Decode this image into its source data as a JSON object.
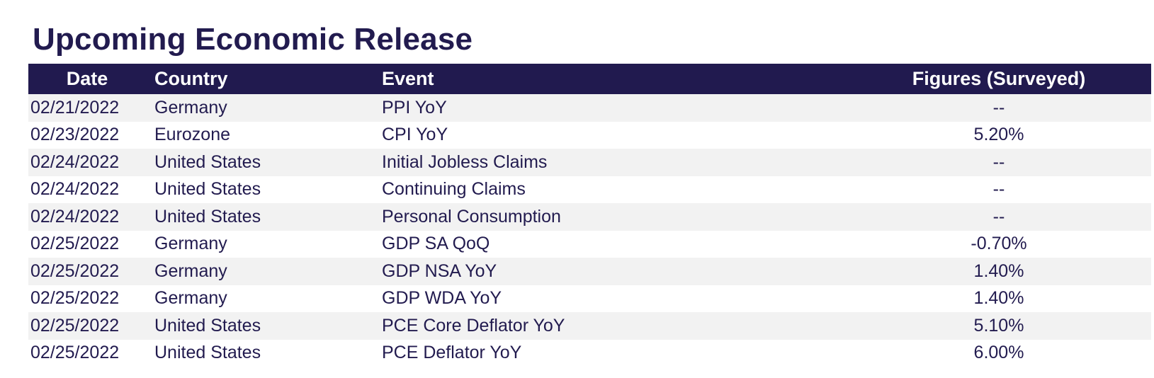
{
  "title": "Upcoming Economic Release",
  "table": {
    "headers": {
      "date": "Date",
      "country": "Country",
      "event": "Event",
      "figures": "Figures (Surveyed)"
    },
    "rows": [
      {
        "date": "02/21/2022",
        "country": "Germany",
        "event": "PPI YoY",
        "figures": "--"
      },
      {
        "date": "02/23/2022",
        "country": "Eurozone",
        "event": "CPI YoY",
        "figures": "5.20%"
      },
      {
        "date": "02/24/2022",
        "country": "United States",
        "event": "Initial Jobless Claims",
        "figures": "--"
      },
      {
        "date": "02/24/2022",
        "country": "United States",
        "event": "Continuing Claims",
        "figures": "--"
      },
      {
        "date": "02/24/2022",
        "country": "United States",
        "event": "Personal Consumption",
        "figures": "--"
      },
      {
        "date": "02/25/2022",
        "country": "Germany",
        "event": "GDP SA QoQ",
        "figures": "-0.70%"
      },
      {
        "date": "02/25/2022",
        "country": "Germany",
        "event": "GDP NSA YoY",
        "figures": "1.40%"
      },
      {
        "date": "02/25/2022",
        "country": "Germany",
        "event": "GDP WDA YoY",
        "figures": "1.40%"
      },
      {
        "date": "02/25/2022",
        "country": "United States",
        "event": "PCE Core Deflator YoY",
        "figures": "5.10%"
      },
      {
        "date": "02/25/2022",
        "country": "United States",
        "event": "PCE Deflator YoY",
        "figures": "6.00%"
      }
    ]
  },
  "colors": {
    "header_background": "#211a4f",
    "text": "#221b4f",
    "stripe": "#f2f2f2"
  }
}
